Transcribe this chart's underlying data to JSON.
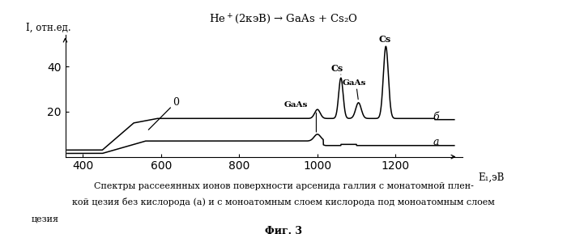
{
  "title": "He$^+$(2кэВ) → GaAs + Cs₂O",
  "xlabel": "E₁,эВ",
  "ylabel": "I, отн.ед.",
  "xlim": [
    355,
    1370
  ],
  "ylim": [
    0,
    54
  ],
  "yticks": [
    20,
    40
  ],
  "xticks": [
    400,
    600,
    800,
    1000,
    1200
  ],
  "caption_line1": "Спектры рассееянных ионов поверхности арсенида галлия с монатомной плен-",
  "caption_line2": "кой цезия без кислорода (а) и с моноатомным слоем кислорода под моноатомным слоем",
  "caption_line3": "цезия",
  "fig_label": "Фиг. 3",
  "bg_color": "#ffffff"
}
